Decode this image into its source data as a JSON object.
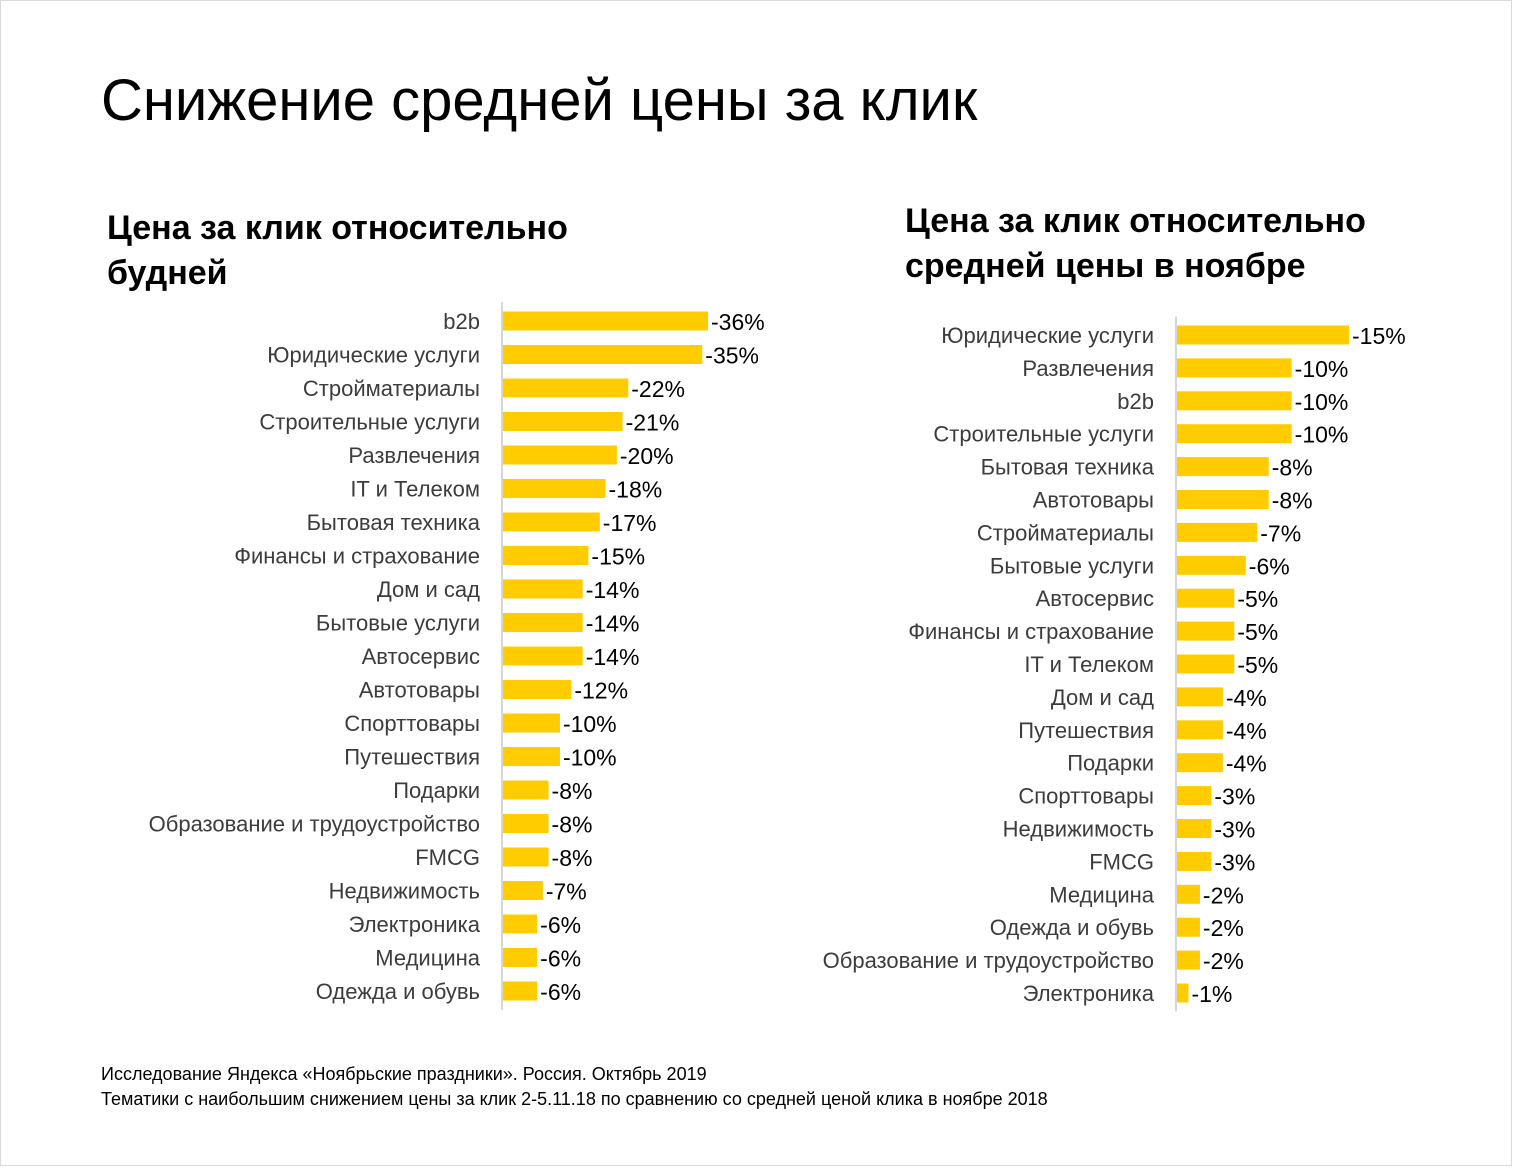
{
  "title": "Снижение средней цены за клик",
  "chart_data": [
    {
      "type": "bar",
      "orientation": "horizontal",
      "title_lines": [
        "Цена за клик относительно",
        "будней"
      ],
      "bar_color": "#FFCC00",
      "value_suffix": "%",
      "categories": [
        "b2b",
        "Юридические услуги",
        "Стройматериалы",
        "Строительные услуги",
        "Развлечения",
        "IT и Телеком",
        "Бытовая техника",
        "Финансы и страхование",
        "Дом и сад",
        "Бытовые услуги",
        "Автосервис",
        "Автотовары",
        "Спорттовары",
        "Путешествия",
        "Подарки",
        "Образование и трудоустройство",
        "FMCG",
        "Недвижимость",
        "Электроника",
        "Медицина",
        "Одежда и обувь"
      ],
      "values": [
        -36,
        -35,
        -22,
        -21,
        -20,
        -18,
        -17,
        -15,
        -14,
        -14,
        -14,
        -12,
        -10,
        -10,
        -8,
        -8,
        -8,
        -7,
        -6,
        -6,
        -6
      ],
      "labels": [
        "-36%",
        "-35%",
        "-22%",
        "-21%",
        "-20%",
        "-18%",
        "-17%",
        "-15%",
        "-14%",
        "-14%",
        "-14%",
        "-12%",
        "-10%",
        "-10%",
        "-8%",
        "-8%",
        "-8%",
        "-7%",
        "-6%",
        "-6%",
        "-6%"
      ]
    },
    {
      "type": "bar",
      "orientation": "horizontal",
      "title_lines": [
        "Цена за клик относительно",
        "средней цены в ноябре"
      ],
      "bar_color": "#FFCC00",
      "value_suffix": "%",
      "categories": [
        "Юридические услуги",
        "Развлечения",
        "b2b",
        "Строительные услуги",
        "Бытовая техника",
        "Автотовары",
        "Стройматериалы",
        "Бытовые услуги",
        "Автосервис",
        "Финансы и страхование",
        "IT и Телеком",
        "Дом и сад",
        "Путешествия",
        "Подарки",
        "Спорттовары",
        "Недвижимость",
        "FMCG",
        "Медицина",
        "Одежда и обувь",
        "Образование и трудоустройство",
        "Электроника"
      ],
      "values": [
        -15,
        -10,
        -10,
        -10,
        -8,
        -8,
        -7,
        -6,
        -5,
        -5,
        -5,
        -4,
        -4,
        -4,
        -3,
        -3,
        -3,
        -2,
        -2,
        -2,
        -1
      ],
      "labels": [
        "-15%",
        "-10%",
        "-10%",
        "-10%",
        "-8%",
        "-8%",
        "-7%",
        "-6%",
        "-5%",
        "-5%",
        "-5%",
        "-4%",
        "-4%",
        "-4%",
        "-3%",
        "-3%",
        "-3%",
        "-2%",
        "-2%",
        "-2%",
        "-1%"
      ]
    }
  ],
  "footnote": [
    "Исследование Яндекса «Ноябрьские праздники». Россия. Октябрь 2019",
    "Тематики с наибольшим снижением цены за клик 2-5.11.18 по сравнению со средней ценой клика в ноябре 2018"
  ]
}
